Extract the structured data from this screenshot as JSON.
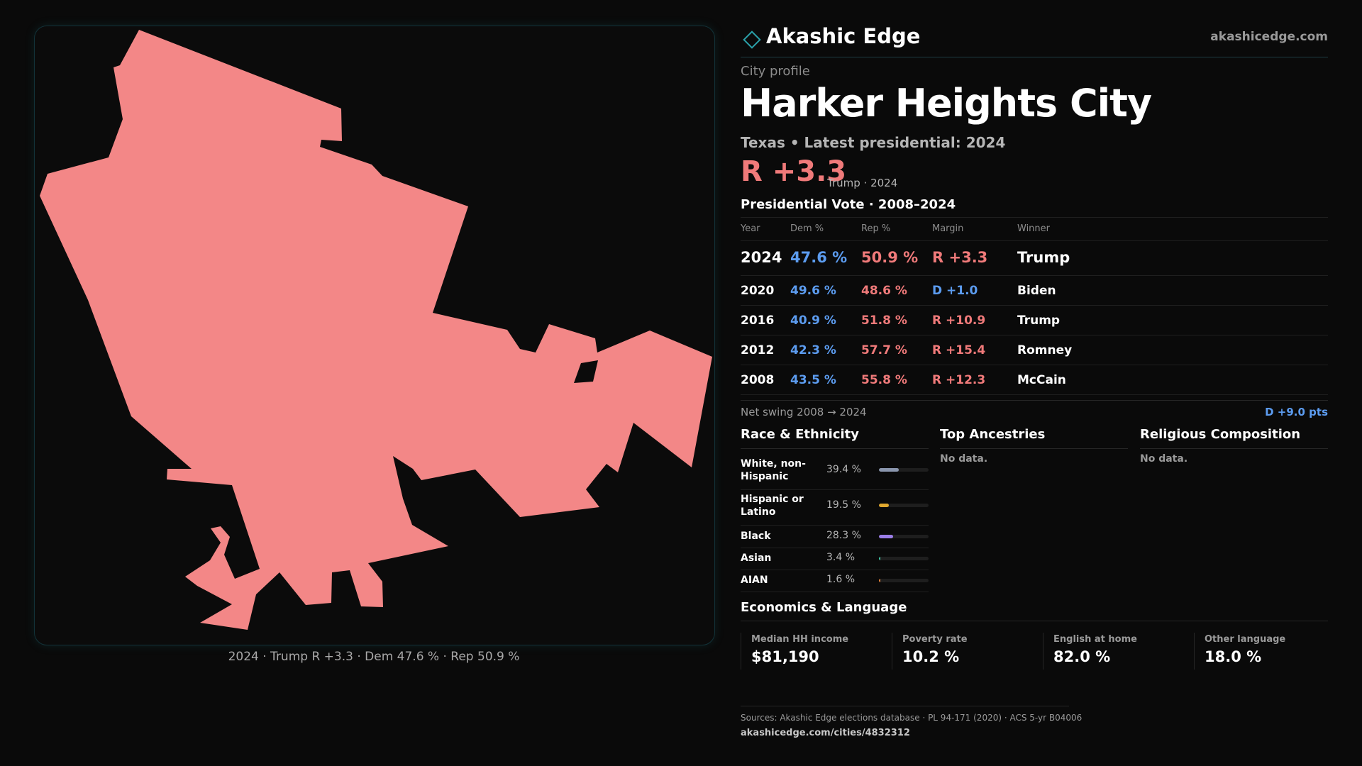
{
  "map": {
    "fill_color": "#f38787",
    "caption": "2024 · Trump R +3.3 · Dem 47.6 % · Rep 50.9 %"
  },
  "header": {
    "brand": "Akashic Edge",
    "domain": "akashicedge.com",
    "logo_icon": "diamond-outline-icon"
  },
  "profile": {
    "eyebrow": "City profile",
    "title": "Harker Heights City",
    "subtitle": "Texas • Latest presidential: 2024",
    "margin": "R +3.3",
    "margin_note": "Trump · 2024"
  },
  "vote": {
    "title": "Presidential Vote · 2008–2024",
    "headers": [
      "Year",
      "Dem %",
      "Rep %",
      "Margin",
      "Winner"
    ],
    "rows": [
      {
        "year": "2024",
        "dem": "47.6 %",
        "rep": "50.9 %",
        "margin": "R +3.3",
        "winner": "Trump"
      },
      {
        "year": "2020",
        "dem": "49.6 %",
        "rep": "48.6 %",
        "margin": "D +1.0",
        "winner": "Biden"
      },
      {
        "year": "2016",
        "dem": "40.9 %",
        "rep": "51.8 %",
        "margin": "R +10.9",
        "winner": "Trump"
      },
      {
        "year": "2012",
        "dem": "42.3 %",
        "rep": "57.7 %",
        "margin": "R +15.4",
        "winner": "Romney"
      },
      {
        "year": "2008",
        "dem": "43.5 %",
        "rep": "55.8 %",
        "margin": "R +12.3",
        "winner": "McCain"
      }
    ],
    "swing_label": "Net swing 2008 → 2024",
    "swing_value": "D +9.0 pts"
  },
  "race": {
    "title": "Race & Ethnicity",
    "rows": [
      {
        "label": "White, non-Hispanic",
        "value": "39.4 %",
        "share": 39.4,
        "color": "#8a96ad"
      },
      {
        "label": "Hispanic or Latino",
        "value": "19.5 %",
        "share": 19.5,
        "color": "#e0a82e"
      },
      {
        "label": "Black",
        "value": "28.3 %",
        "share": 28.3,
        "color": "#9b7ee8"
      },
      {
        "label": "Asian",
        "value": "3.4 %",
        "share": 3.4,
        "color": "#3fc7a5"
      },
      {
        "label": "AIAN",
        "value": "1.6 %",
        "share": 1.6,
        "color": "#e8833a"
      }
    ]
  },
  "ancestries": {
    "title": "Top Ancestries",
    "empty": "No data."
  },
  "religion": {
    "title": "Religious Composition",
    "empty": "No data."
  },
  "economics": {
    "title": "Economics & Language",
    "stats": [
      {
        "label": "Median HH income",
        "value": "$81,190"
      },
      {
        "label": "Poverty rate",
        "value": "10.2 %"
      },
      {
        "label": "English at home",
        "value": "82.0 %"
      },
      {
        "label": "Other language",
        "value": "18.0 %"
      }
    ]
  },
  "footer": {
    "sources": "Sources: Akashic Edge elections database · PL 94-171 (2020) · ACS 5-yr B04006",
    "url": "akashicedge.com/cities/4832312"
  }
}
